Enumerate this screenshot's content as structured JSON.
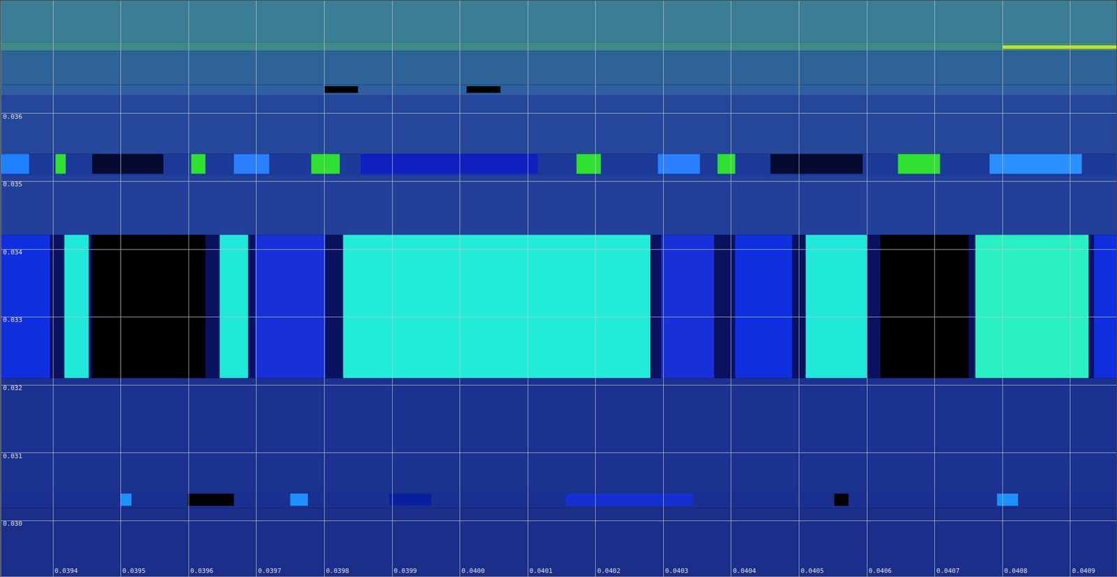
{
  "chart_data": {
    "type": "heatmap",
    "xlim": [
      0.039323,
      0.040968
    ],
    "ylim": [
      0.02918,
      0.03766
    ],
    "xticks": [
      0.0394,
      0.0395,
      0.0396,
      0.0397,
      0.0398,
      0.0399,
      {
        "value": 0.04,
        "label": "0.0400"
      },
      0.0401,
      0.0402,
      0.0403,
      0.0404,
      0.0405,
      0.0406,
      0.0407,
      0.0408,
      0.0409
    ],
    "yticks": [
      {
        "value": 0.03,
        "label": "0.030"
      },
      0.031,
      0.032,
      0.033,
      0.034,
      0.035,
      0.036
    ],
    "grid": true,
    "regions": [
      {
        "x": [
          0.039323,
          0.040968
        ],
        "y": [
          0.03705,
          0.03766
        ],
        "color": "#3a7d95"
      },
      {
        "x": [
          0.039323,
          0.040968
        ],
        "y": [
          0.03692,
          0.03705
        ],
        "color": "#3c8a8a"
      },
      {
        "x": [
          0.0408,
          0.040968
        ],
        "y": [
          0.03695,
          0.037
        ],
        "color": "#c8e020"
      },
      {
        "x": [
          0.039323,
          0.040968
        ],
        "y": [
          0.03642,
          0.03692
        ],
        "color": "#2e6398"
      },
      {
        "x": [
          0.039323,
          0.040968
        ],
        "y": [
          0.03627,
          0.03642
        ],
        "color": "#2f5fa0"
      },
      {
        "x": [
          0.0398,
          0.03985
        ],
        "y": [
          0.0363,
          0.0364
        ],
        "color": "#000000"
      },
      {
        "x": [
          0.04001,
          0.04006
        ],
        "y": [
          0.0363,
          0.0364
        ],
        "color": "#000000"
      },
      {
        "x": [
          0.039323,
          0.040968
        ],
        "y": [
          0.0354,
          0.03627
        ],
        "color": "#24479a"
      },
      {
        "x": [
          0.039323,
          0.040968
        ],
        "y": [
          0.03508,
          0.0354
        ],
        "color": "#1c3a9a"
      },
      {
        "x": [
          0.039323,
          0.039365
        ],
        "y": [
          0.03511,
          0.0354
        ],
        "color": "#1e80ff"
      },
      {
        "x": [
          0.039404,
          0.039419
        ],
        "y": [
          0.03511,
          0.0354
        ],
        "color": "#30e030"
      },
      {
        "x": [
          0.039458,
          0.039563
        ],
        "y": [
          0.03511,
          0.0354
        ],
        "color": "#050a30"
      },
      {
        "x": [
          0.039604,
          0.039625
        ],
        "y": [
          0.03511,
          0.0354
        ],
        "color": "#30e030"
      },
      {
        "x": [
          0.039667,
          0.039719
        ],
        "y": [
          0.03511,
          0.0354
        ],
        "color": "#2a7fff"
      },
      {
        "x": [
          0.039781,
          0.039823
        ],
        "y": [
          0.03511,
          0.0354
        ],
        "color": "#30e030"
      },
      {
        "x": [
          0.039854,
          0.040115
        ],
        "y": [
          0.03511,
          0.0354
        ],
        "color": "#1020c0"
      },
      {
        "x": [
          0.040172,
          0.040208
        ],
        "y": [
          0.03511,
          0.0354
        ],
        "color": "#30e030"
      },
      {
        "x": [
          0.040292,
          0.040354
        ],
        "y": [
          0.03511,
          0.0354
        ],
        "color": "#2a80ff"
      },
      {
        "x": [
          0.04038,
          0.040406
        ],
        "y": [
          0.03511,
          0.0354
        ],
        "color": "#30e030"
      },
      {
        "x": [
          0.040458,
          0.040594
        ],
        "y": [
          0.03511,
          0.0354
        ],
        "color": "#050a30"
      },
      {
        "x": [
          0.040646,
          0.040708
        ],
        "y": [
          0.03511,
          0.0354
        ],
        "color": "#30e030"
      },
      {
        "x": [
          0.040781,
          0.040917
        ],
        "y": [
          0.03511,
          0.0354
        ],
        "color": "#2a90ff"
      },
      {
        "x": [
          0.039323,
          0.040968
        ],
        "y": [
          0.03421,
          0.03508
        ],
        "color": "#22409a"
      },
      {
        "x": [
          0.039323,
          0.040968
        ],
        "y": [
          0.0321,
          0.03421
        ],
        "color": "#0a1260"
      },
      {
        "x": [
          0.039323,
          0.039396
        ],
        "y": [
          0.0321,
          0.03421
        ],
        "color": "#1030e0"
      },
      {
        "x": [
          0.039417,
          0.039453
        ],
        "y": [
          0.0321,
          0.03421
        ],
        "color": "#20e8d8"
      },
      {
        "x": [
          0.039458,
          0.039625
        ],
        "y": [
          0.0321,
          0.03421
        ],
        "color": "#000000"
      },
      {
        "x": [
          0.039646,
          0.039688
        ],
        "y": [
          0.0321,
          0.03421
        ],
        "color": "#20e8d8"
      },
      {
        "x": [
          0.039698,
          0.039802
        ],
        "y": [
          0.0321,
          0.03421
        ],
        "color": "#1830d8"
      },
      {
        "x": [
          0.039828,
          0.040281
        ],
        "y": [
          0.0321,
          0.03421
        ],
        "color": "#22ecd8"
      },
      {
        "x": [
          0.040297,
          0.040375
        ],
        "y": [
          0.0321,
          0.03421
        ],
        "color": "#1830d8"
      },
      {
        "x": [
          0.040406,
          0.04049
        ],
        "y": [
          0.0321,
          0.03421
        ],
        "color": "#1030e0"
      },
      {
        "x": [
          0.04051,
          0.0406
        ],
        "y": [
          0.0321,
          0.03421
        ],
        "color": "#20e8d8"
      },
      {
        "x": [
          0.04062,
          0.04075
        ],
        "y": [
          0.0321,
          0.03421
        ],
        "color": "#000000"
      },
      {
        "x": [
          0.04076,
          0.040927
        ],
        "y": [
          0.0321,
          0.03421
        ],
        "color": "#28f0c0"
      },
      {
        "x": [
          0.040935,
          0.040968
        ],
        "y": [
          0.0321,
          0.03421
        ],
        "color": "#1030e0"
      },
      {
        "x": [
          0.039323,
          0.040968
        ],
        "y": [
          0.03044,
          0.0321
        ],
        "color": "#1b3290"
      },
      {
        "x": [
          0.039323,
          0.040968
        ],
        "y": [
          0.03019,
          0.03044
        ],
        "color": "#1a3090"
      },
      {
        "x": [
          0.0395,
          0.039516
        ],
        "y": [
          0.03022,
          0.0304
        ],
        "color": "#1e90ff"
      },
      {
        "x": [
          0.039599,
          0.039667
        ],
        "y": [
          0.03022,
          0.0304
        ],
        "color": "#000000"
      },
      {
        "x": [
          0.03975,
          0.039776
        ],
        "y": [
          0.03022,
          0.0304
        ],
        "color": "#1e90ff"
      },
      {
        "x": [
          0.039896,
          0.039958
        ],
        "y": [
          0.03022,
          0.0304
        ],
        "color": "#0820a0"
      },
      {
        "x": [
          0.040156,
          0.040344
        ],
        "y": [
          0.03022,
          0.0304
        ],
        "color": "#1530d0"
      },
      {
        "x": [
          0.040552,
          0.040573
        ],
        "y": [
          0.03022,
          0.0304
        ],
        "color": "#000000"
      },
      {
        "x": [
          0.040792,
          0.040823
        ],
        "y": [
          0.03022,
          0.0304
        ],
        "color": "#1e90ff"
      },
      {
        "x": [
          0.039323,
          0.040968
        ],
        "y": [
          0.02918,
          0.03019
        ],
        "color": "#1a2e8a"
      }
    ]
  }
}
